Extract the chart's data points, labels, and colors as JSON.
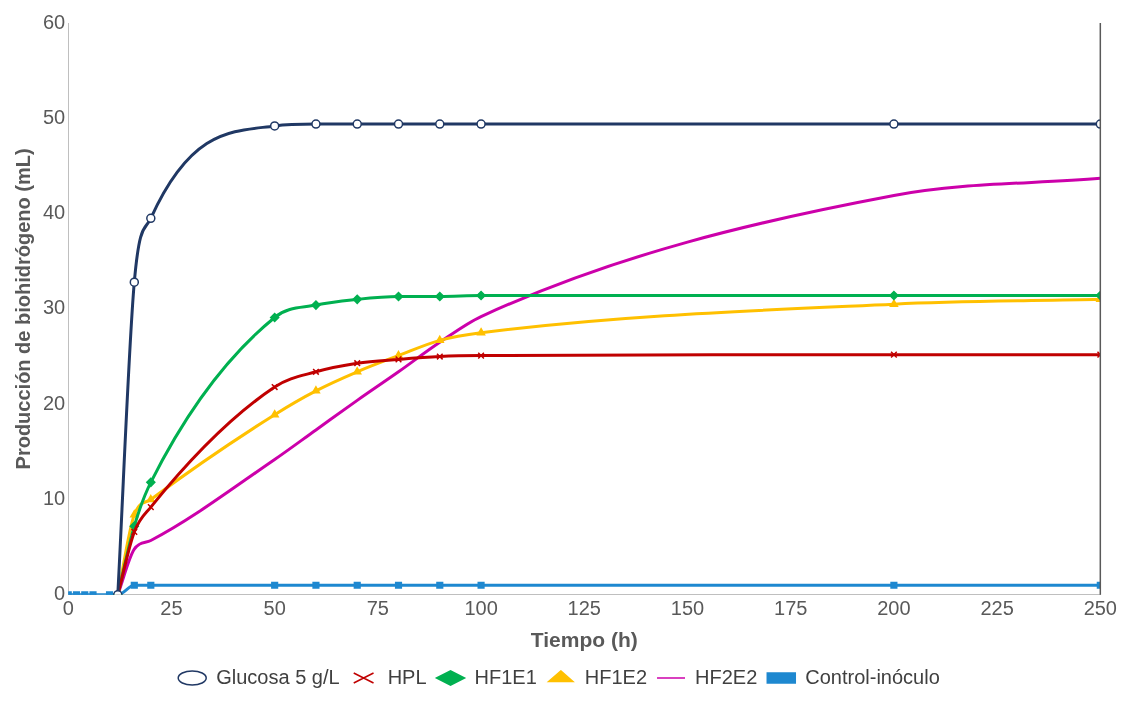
{
  "chart_data": {
    "type": "line",
    "xlabel": "Tiempo (h)",
    "ylabel": "Producción de biohidrógeno (mL)",
    "x": [
      0,
      2,
      4,
      6,
      10,
      12,
      16,
      20,
      50,
      60,
      70,
      80,
      90,
      100,
      200,
      250
    ],
    "xlim": [
      0,
      250
    ],
    "xticks": [
      0,
      25,
      50,
      75,
      100,
      125,
      150,
      175,
      200,
      225,
      250
    ],
    "ylim": [
      0,
      60
    ],
    "yticks": [
      0,
      10,
      20,
      30,
      40,
      50,
      60
    ],
    "grid": false,
    "legend": "bottom",
    "series": [
      {
        "name": "Glucosa 5 g/L",
        "color": "#203864",
        "marker": "circle",
        "values": [
          null,
          null,
          null,
          null,
          null,
          0,
          32.8,
          39.5,
          49.2,
          49.4,
          49.4,
          49.4,
          49.4,
          49.4,
          49.4,
          49.4
        ]
      },
      {
        "name": "HPL",
        "color": "#c00000",
        "marker": "cross",
        "values": [
          null,
          null,
          null,
          null,
          null,
          0,
          6.6,
          9.2,
          21.8,
          23.4,
          24.3,
          24.7,
          25.0,
          25.1,
          25.2,
          25.2
        ]
      },
      {
        "name": "HF1E1",
        "color": "#00b050",
        "marker": "diamond",
        "values": [
          null,
          null,
          null,
          null,
          null,
          0,
          7.2,
          11.8,
          29.1,
          30.4,
          31.0,
          31.3,
          31.3,
          31.4,
          31.4,
          31.4
        ]
      },
      {
        "name": "HF1E2",
        "color": "#ffc000",
        "marker": "triangle",
        "values": [
          null,
          null,
          null,
          null,
          null,
          0,
          8.4,
          10.0,
          18.9,
          21.4,
          23.4,
          25.1,
          26.7,
          27.5,
          30.5,
          31.0
        ]
      },
      {
        "name": "HF2E2",
        "color": "#cc00aa",
        "marker": "none",
        "values": [
          null,
          null,
          null,
          null,
          null,
          0,
          4.8,
          5.7,
          14.2,
          17.3,
          20.4,
          23.4,
          26.5,
          29.2,
          41.9,
          43.7
        ]
      },
      {
        "name": "Control-inóculo",
        "color": "#1e88d0",
        "marker": "square",
        "values": [
          0,
          0,
          0,
          0,
          0,
          0,
          1.0,
          1.0,
          1.0,
          1.0,
          1.0,
          1.0,
          1.0,
          1.0,
          1.0,
          1.0
        ]
      }
    ]
  }
}
